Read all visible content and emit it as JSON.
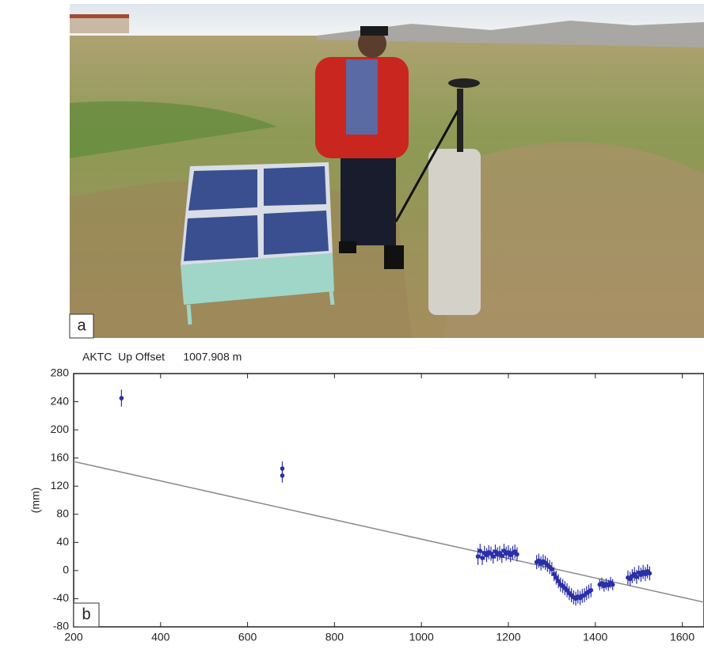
{
  "panel_labels": [
    "a",
    "b"
  ],
  "chart_data": {
    "type": "scatter",
    "title": "AKTC  Up Offset      1007.908 m",
    "ylabel": "(mm)",
    "xlim": [
      200,
      1650
    ],
    "ylim": [
      -80,
      280
    ],
    "xticks": [
      200,
      400,
      600,
      800,
      1000,
      1200,
      1400,
      1600
    ],
    "yticks": [
      -80,
      -40,
      0,
      40,
      80,
      120,
      160,
      200,
      240,
      280
    ],
    "color": "#2b2fa8",
    "line_color": "#8a8a8a",
    "x": [
      310,
      680,
      680,
      1130,
      1135,
      1140,
      1145,
      1150,
      1155,
      1160,
      1165,
      1170,
      1175,
      1180,
      1185,
      1190,
      1195,
      1200,
      1205,
      1210,
      1215,
      1220,
      1265,
      1270,
      1275,
      1280,
      1285,
      1290,
      1295,
      1300,
      1305,
      1310,
      1315,
      1320,
      1325,
      1330,
      1335,
      1340,
      1345,
      1350,
      1355,
      1360,
      1365,
      1370,
      1375,
      1380,
      1385,
      1390,
      1410,
      1415,
      1420,
      1425,
      1430,
      1435,
      1440,
      1475,
      1480,
      1485,
      1490,
      1495,
      1500,
      1505,
      1510,
      1515,
      1520,
      1525
    ],
    "values": [
      245,
      145,
      135,
      20,
      28,
      18,
      25,
      22,
      26,
      24,
      20,
      27,
      23,
      25,
      21,
      28,
      24,
      26,
      22,
      25,
      27,
      23,
      12,
      14,
      10,
      13,
      11,
      8,
      5,
      2,
      -5,
      -10,
      -15,
      -20,
      -22,
      -25,
      -28,
      -32,
      -35,
      -38,
      -40,
      -37,
      -39,
      -36,
      -35,
      -32,
      -30,
      -28,
      -20,
      -18,
      -22,
      -19,
      -21,
      -17,
      -20,
      -10,
      -12,
      -8,
      -5,
      -9,
      -3,
      -6,
      -2,
      -5,
      -1,
      -4
    ],
    "errors": [
      12,
      10,
      10,
      12,
      10,
      10,
      10,
      10,
      10,
      10,
      10,
      10,
      10,
      10,
      10,
      10,
      10,
      10,
      10,
      10,
      10,
      10,
      10,
      10,
      10,
      10,
      10,
      10,
      10,
      10,
      10,
      10,
      10,
      10,
      10,
      10,
      10,
      10,
      10,
      10,
      10,
      10,
      10,
      10,
      10,
      10,
      10,
      10,
      8,
      8,
      8,
      8,
      8,
      8,
      8,
      10,
      10,
      10,
      10,
      10,
      10,
      10,
      10,
      10,
      10,
      10
    ],
    "trend_line": {
      "x": [
        200,
        1650
      ],
      "y": [
        155,
        -45
      ]
    }
  }
}
